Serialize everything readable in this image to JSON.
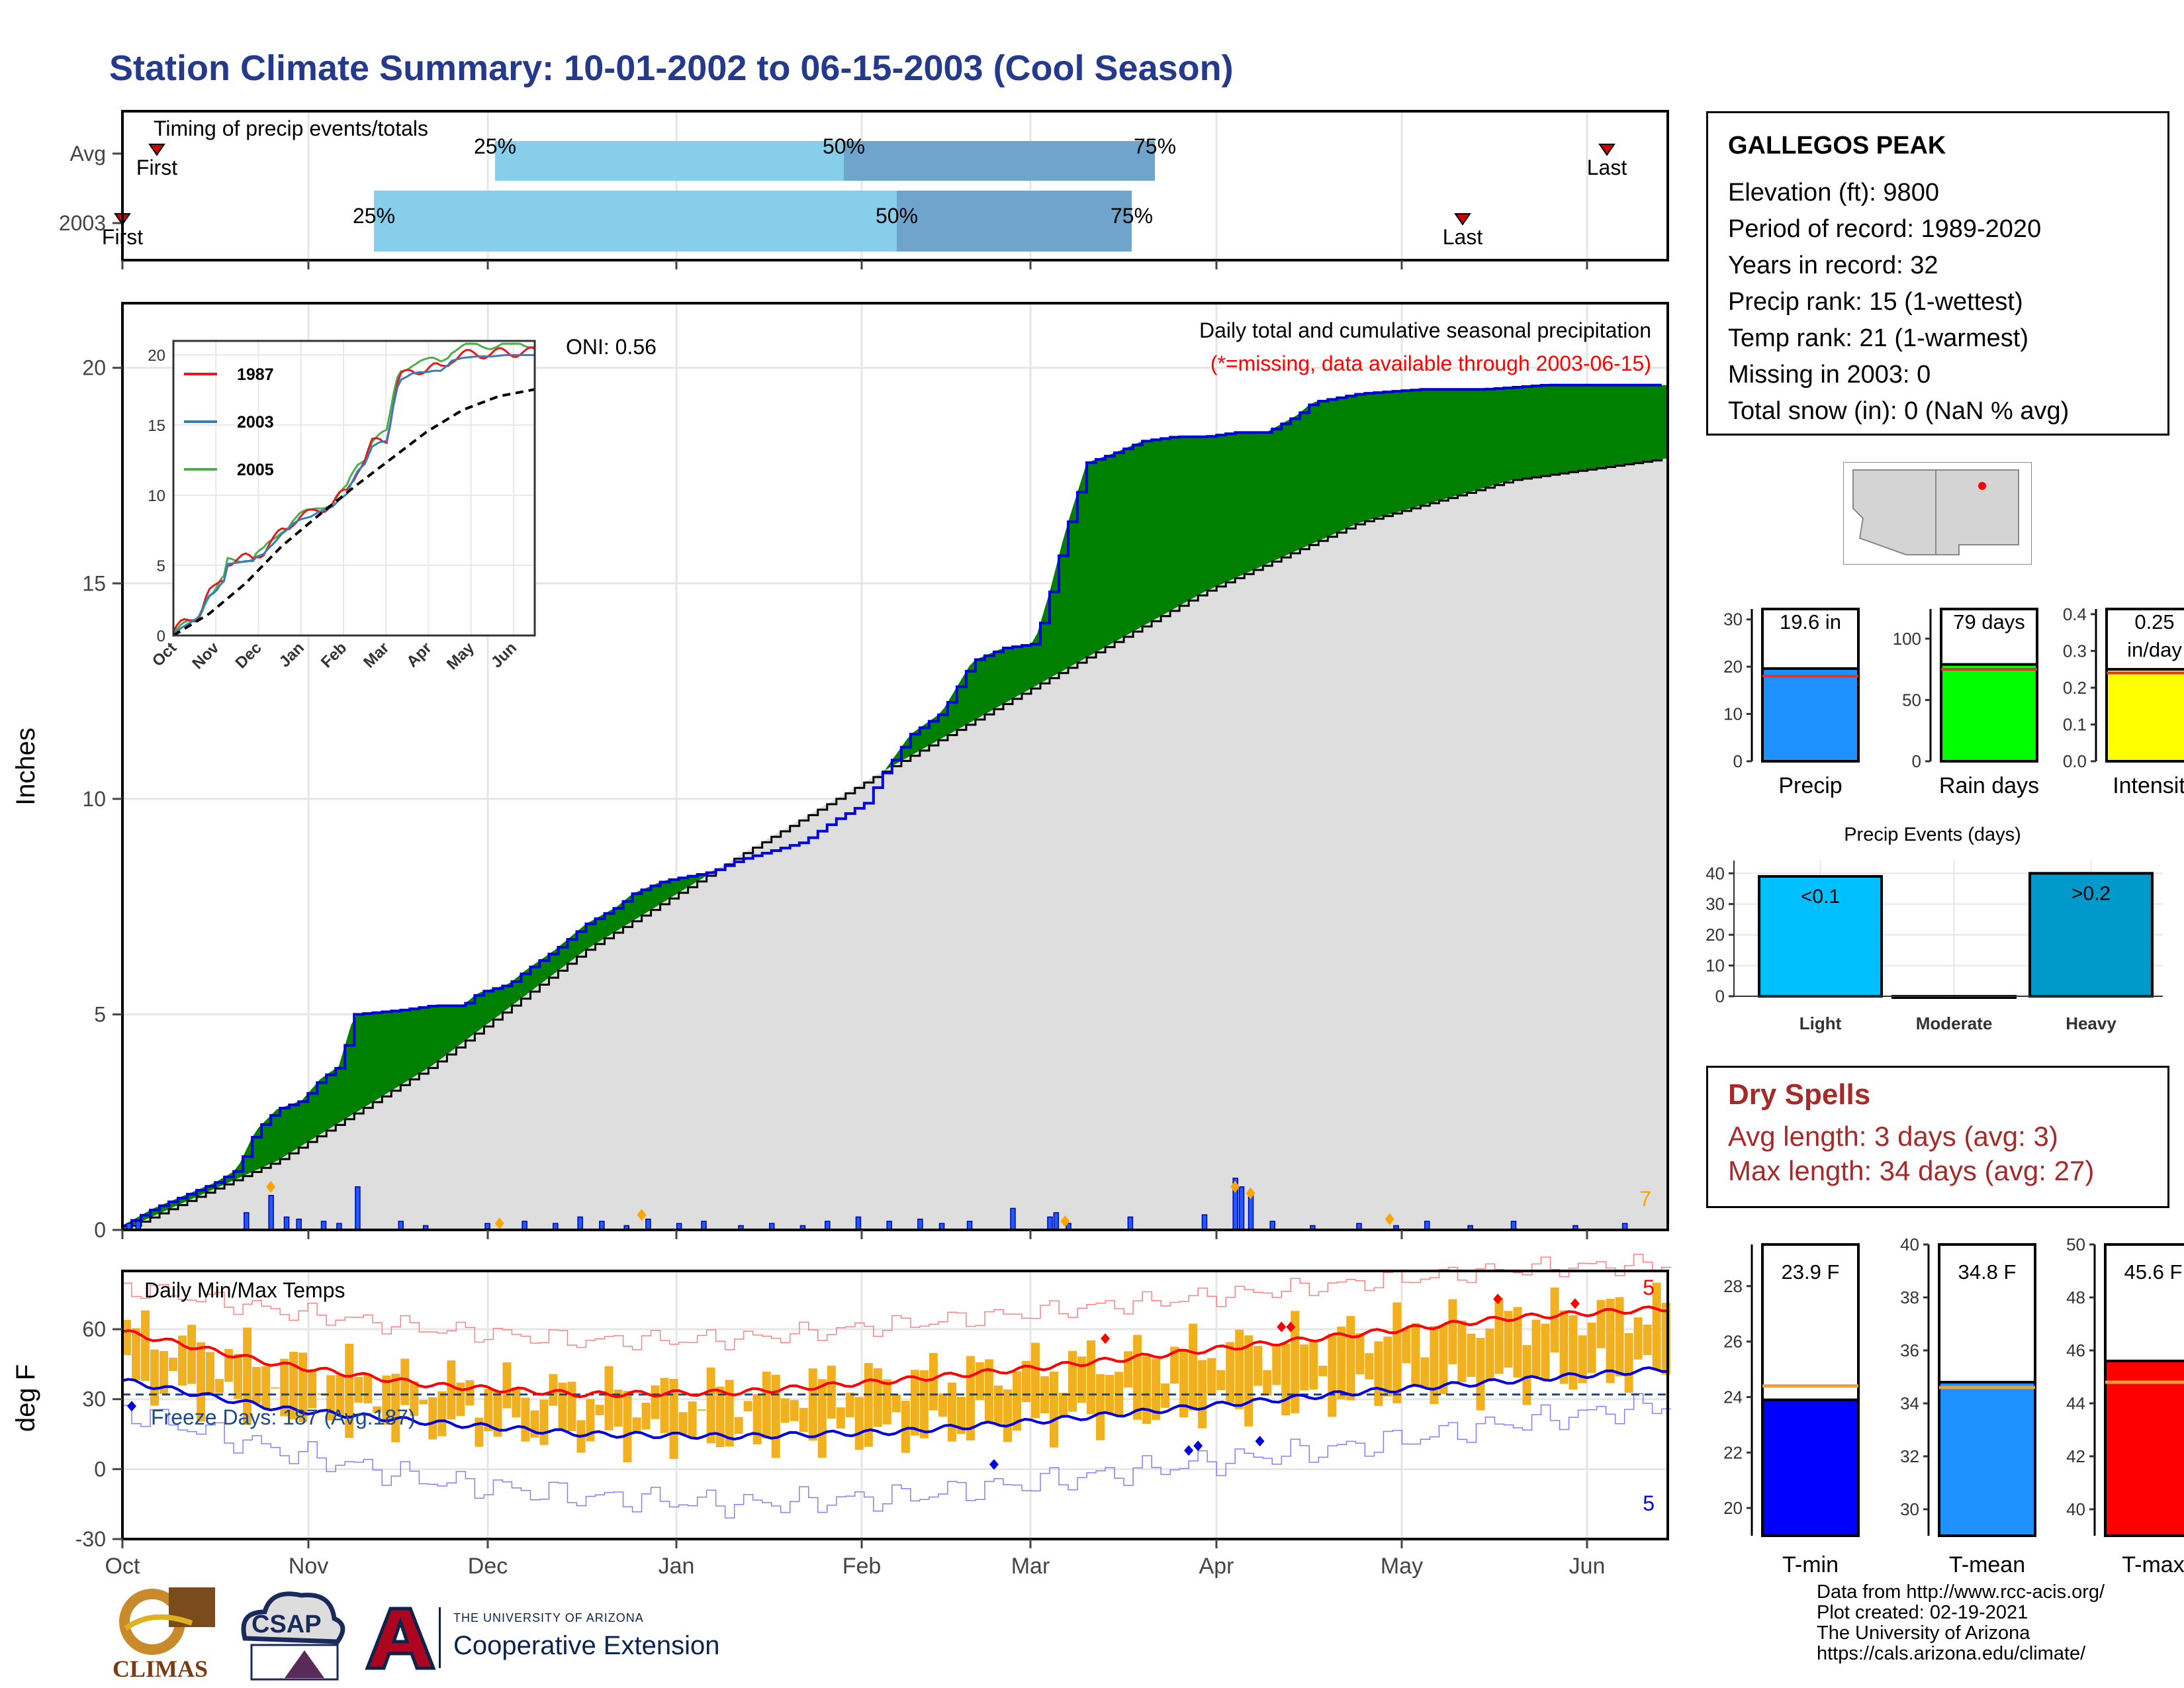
{
  "title": "Station Climate Summary: 10-01-2002 to 06-15-2003 (Cool Season)",
  "months": [
    "Oct",
    "Nov",
    "Dec",
    "Jan",
    "Feb",
    "Mar",
    "Apr",
    "May",
    "Jun"
  ],
  "timing": {
    "title": "Timing of precip events/totals",
    "rows": [
      {
        "label": "Avg",
        "first_label": "First",
        "last_label": "Last",
        "pct": [
          "25%",
          "50%",
          "75%"
        ]
      },
      {
        "label": "2003",
        "first_label": "First",
        "last_label": "Last",
        "pct": [
          "25%",
          "50%",
          "75%"
        ]
      }
    ]
  },
  "precip": {
    "ylabel": "Inches",
    "oni": "ONI: 0.56",
    "note": "Daily total and cumulative seasonal precipitation",
    "missing_note": "(*=missing, data available through 2003-06-15)",
    "yticks": [
      "0",
      "5",
      "10",
      "15",
      "20"
    ],
    "corner_count": "7",
    "cumulative_2003": [
      [
        0,
        0.1
      ],
      [
        10,
        0.5
      ],
      [
        20,
        0.8
      ],
      [
        30,
        1.1
      ],
      [
        37,
        1.4
      ],
      [
        43,
        2.3
      ],
      [
        50,
        2.8
      ],
      [
        58,
        3.0
      ],
      [
        64,
        3.5
      ],
      [
        70,
        3.8
      ],
      [
        75,
        5.0
      ],
      [
        90,
        5.1
      ],
      [
        100,
        5.2
      ],
      [
        110,
        5.2
      ],
      [
        115,
        5.5
      ],
      [
        125,
        5.7
      ],
      [
        130,
        6.0
      ],
      [
        140,
        6.5
      ],
      [
        150,
        7.1
      ],
      [
        160,
        7.5
      ],
      [
        165,
        7.8
      ],
      [
        175,
        8.1
      ],
      [
        190,
        8.3
      ],
      [
        200,
        8.6
      ],
      [
        210,
        8.8
      ],
      [
        220,
        9.0
      ],
      [
        230,
        9.5
      ],
      [
        240,
        9.9
      ],
      [
        245,
        10.5
      ],
      [
        255,
        11.5
      ],
      [
        265,
        12.0
      ],
      [
        275,
        13.2
      ],
      [
        285,
        13.5
      ],
      [
        295,
        13.6
      ],
      [
        300,
        14.8
      ],
      [
        305,
        16.2
      ],
      [
        312,
        17.8
      ],
      [
        320,
        18.0
      ],
      [
        330,
        18.3
      ],
      [
        340,
        18.4
      ],
      [
        350,
        18.4
      ],
      [
        360,
        18.5
      ],
      [
        370,
        18.5
      ],
      [
        380,
        18.9
      ],
      [
        385,
        19.2
      ],
      [
        400,
        19.4
      ],
      [
        420,
        19.5
      ],
      [
        440,
        19.5
      ],
      [
        460,
        19.6
      ],
      [
        480,
        19.6
      ],
      [
        490,
        19.6
      ],
      [
        500,
        19.6
      ]
    ],
    "cumulative_avg": [
      [
        0,
        0.0
      ],
      [
        50,
        1.6
      ],
      [
        100,
        3.8
      ],
      [
        150,
        6.5
      ],
      [
        200,
        8.7
      ],
      [
        250,
        10.8
      ],
      [
        300,
        12.8
      ],
      [
        350,
        14.8
      ],
      [
        400,
        16.4
      ],
      [
        450,
        17.4
      ],
      [
        500,
        17.9
      ]
    ],
    "daily_events": [
      [
        2,
        0.15
      ],
      [
        5,
        0.2
      ],
      [
        40,
        0.4
      ],
      [
        48,
        0.8
      ],
      [
        53,
        0.3
      ],
      [
        57,
        0.25
      ],
      [
        65,
        0.2
      ],
      [
        70,
        0.15
      ],
      [
        76,
        1.0
      ],
      [
        90,
        0.2
      ],
      [
        98,
        0.1
      ],
      [
        118,
        0.15
      ],
      [
        130,
        0.2
      ],
      [
        140,
        0.15
      ],
      [
        148,
        0.3
      ],
      [
        155,
        0.2
      ],
      [
        163,
        0.1
      ],
      [
        170,
        0.25
      ],
      [
        180,
        0.15
      ],
      [
        188,
        0.2
      ],
      [
        200,
        0.1
      ],
      [
        210,
        0.15
      ],
      [
        220,
        0.1
      ],
      [
        228,
        0.2
      ],
      [
        238,
        0.3
      ],
      [
        248,
        0.2
      ],
      [
        258,
        0.25
      ],
      [
        265,
        0.15
      ],
      [
        274,
        0.2
      ],
      [
        288,
        0.5
      ],
      [
        300,
        0.3
      ],
      [
        302,
        0.4
      ],
      [
        306,
        0.15
      ],
      [
        326,
        0.3
      ],
      [
        350,
        0.35
      ],
      [
        360,
        1.2
      ],
      [
        362,
        1.0
      ],
      [
        365,
        0.8
      ],
      [
        372,
        0.2
      ],
      [
        385,
        0.1
      ],
      [
        400,
        0.15
      ],
      [
        412,
        0.1
      ],
      [
        422,
        0.2
      ],
      [
        436,
        0.1
      ],
      [
        450,
        0.2
      ],
      [
        470,
        0.1
      ],
      [
        486,
        0.15
      ]
    ],
    "ylim": [
      0,
      21.5
    ],
    "inset": {
      "legend": [
        "1987",
        "2003",
        "2005"
      ],
      "legend_colors": [
        "#e41a1c",
        "#377eb8",
        "#4daf4a"
      ],
      "yticks": [
        "0",
        "5",
        "10",
        "15",
        "20"
      ],
      "xticks": [
        "Oct",
        "Nov",
        "Dec",
        "Jan",
        "Feb",
        "Mar",
        "Apr",
        "May",
        "Jun"
      ]
    }
  },
  "temps": {
    "title": "Daily Min/Max Temps",
    "ylabel": "deg F",
    "freeze": "Freeze Days: 187 (Avg:187)",
    "yticks": [
      "-30",
      "0",
      "30",
      "60"
    ],
    "count_max": "5",
    "count_min": "5",
    "ylim": [
      -30,
      85
    ],
    "avg_max": [
      [
        0,
        59
      ],
      [
        50,
        45
      ],
      [
        100,
        36
      ],
      [
        150,
        32
      ],
      [
        200,
        33
      ],
      [
        250,
        38
      ],
      [
        300,
        44
      ],
      [
        350,
        51
      ],
      [
        400,
        58
      ],
      [
        450,
        65
      ],
      [
        500,
        69
      ]
    ],
    "avg_min": [
      [
        0,
        38
      ],
      [
        50,
        26
      ],
      [
        100,
        20
      ],
      [
        150,
        15
      ],
      [
        200,
        14
      ],
      [
        250,
        16
      ],
      [
        300,
        21
      ],
      [
        350,
        27
      ],
      [
        400,
        33
      ],
      [
        450,
        38
      ],
      [
        500,
        43
      ]
    ],
    "rec_max": [
      [
        0,
        78
      ],
      [
        50,
        68
      ],
      [
        100,
        60
      ],
      [
        150,
        55
      ],
      [
        200,
        56
      ],
      [
        250,
        62
      ],
      [
        300,
        68
      ],
      [
        350,
        74
      ],
      [
        400,
        80
      ],
      [
        450,
        86
      ],
      [
        500,
        88
      ]
    ],
    "rec_min": [
      [
        0,
        25
      ],
      [
        50,
        8
      ],
      [
        100,
        -5
      ],
      [
        150,
        -12
      ],
      [
        200,
        -15
      ],
      [
        250,
        -12
      ],
      [
        300,
        -5
      ],
      [
        350,
        3
      ],
      [
        400,
        10
      ],
      [
        450,
        20
      ],
      [
        500,
        28
      ]
    ]
  },
  "station": {
    "name": "GALLEGOS PEAK",
    "lines": [
      "Elevation (ft): 9800",
      "Period of record: 1989-2020",
      "Years in record: 32",
      "Precip rank: 15 (1-wettest)",
      "Temp rank: 21 (1-warmest)",
      "Missing in 2003: 0",
      "Total snow (in): 0 (NaN % avg)"
    ]
  },
  "summary_bars": [
    {
      "label": "Precip",
      "value_text": "19.6 in",
      "value": 19.6,
      "avg": 18.0,
      "max": 35,
      "ticks": [
        "0",
        "10",
        "20",
        "30"
      ],
      "color": "#1e90ff"
    },
    {
      "label": "Rain days",
      "value_text": "79 days",
      "value": 79,
      "avg": 75,
      "max": 135,
      "ticks": [
        "0",
        "50",
        "100"
      ],
      "color": "#00ff00"
    },
    {
      "label": "Intensity",
      "value_text": "0.25",
      "value_text2": "in/day",
      "value": 0.25,
      "avg": 0.24,
      "max": 0.45,
      "ticks": [
        "0.0",
        "0.1",
        "0.2",
        "0.3",
        "0.4"
      ],
      "color": "#ffff00"
    }
  ],
  "precip_events": {
    "title": "Precip Events (days)",
    "categories": [
      "Light",
      "Moderate",
      "Heavy"
    ],
    "bar_labels": [
      "<0.1",
      "",
      ">0.2"
    ],
    "values": [
      39,
      0,
      40
    ],
    "ticks": [
      "0",
      "10",
      "20",
      "30",
      "40"
    ],
    "colors": [
      "#00bfff",
      "#0099cc",
      "#0099cc"
    ]
  },
  "dry_spells": {
    "title": "Dry Spells",
    "lines": [
      "Avg length: 3 days (avg: 3)",
      "Max length: 34 days (avg: 27)"
    ]
  },
  "temp_bars": [
    {
      "label": "T-min",
      "value_text": "23.9 F",
      "value": 23.9,
      "avg": 24.4,
      "min": 19,
      "max": 29.5,
      "ticks": [
        "20",
        "22",
        "24",
        "26",
        "28"
      ],
      "color": "#0000ff"
    },
    {
      "label": "T-mean",
      "value_text": "34.8 F",
      "value": 34.8,
      "avg": 34.6,
      "min": 29,
      "max": 40,
      "ticks": [
        "30",
        "32",
        "34",
        "36",
        "38",
        "40"
      ],
      "color": "#1e90ff"
    },
    {
      "label": "T-max",
      "value_text": "45.6 F",
      "value": 45.6,
      "avg": 44.8,
      "min": 39,
      "max": 50,
      "ticks": [
        "40",
        "42",
        "44",
        "46",
        "48",
        "50"
      ],
      "color": "#ff0000"
    }
  ],
  "logos": {
    "climas": "CLIMAS",
    "csap": "CSAP",
    "ua_top": "THE UNIVERSITY OF ARIZONA",
    "ua_bottom": "Cooperative Extension"
  },
  "credits": [
    "Data from http://www.rcc-acis.org/",
    "Plot created: 02-19-2021",
    "The University of Arizona",
    "https://cals.arizona.edu/climate/"
  ]
}
